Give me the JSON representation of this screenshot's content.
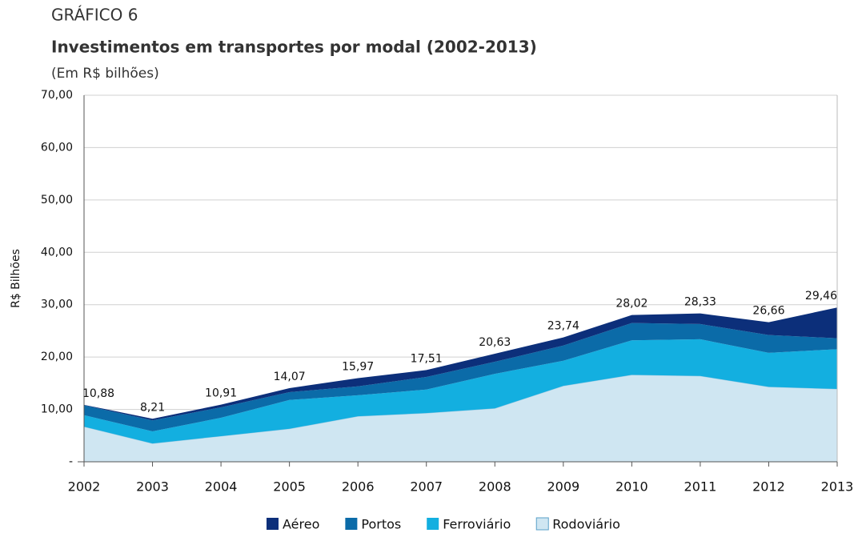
{
  "chart_data": {
    "type": "stacked_area",
    "kicker": "GRÁFICO 6",
    "title": "Investimentos em transportes por modal (2002-2013)",
    "subtitle": "(Em R$ bilhões)",
    "y_label": "R$ Bilhões",
    "categories": [
      "2002",
      "2003",
      "2004",
      "2005",
      "2006",
      "2007",
      "2008",
      "2009",
      "2010",
      "2011",
      "2012",
      "2013"
    ],
    "series": [
      {
        "name": "Rodoviário",
        "color": "#cfe6f2",
        "values": [
          6.7,
          3.5,
          4.9,
          6.3,
          8.7,
          9.3,
          10.2,
          14.5,
          16.6,
          16.4,
          14.3,
          13.9
        ]
      },
      {
        "name": "Ferroviário",
        "color": "#13afe0",
        "values": [
          2.2,
          2.3,
          3.5,
          5.5,
          4.0,
          4.5,
          6.6,
          4.8,
          6.6,
          7.0,
          6.5,
          7.6
        ]
      },
      {
        "name": "Portos",
        "color": "#0b6ba8",
        "values": [
          1.9,
          2.1,
          2.0,
          1.5,
          1.7,
          2.4,
          2.3,
          2.9,
          3.3,
          2.9,
          3.4,
          2.1
        ]
      },
      {
        "name": "Aéreo",
        "color": "#0c2f7a",
        "values": [
          0.08,
          0.31,
          0.51,
          0.77,
          1.57,
          1.31,
          1.53,
          1.54,
          1.52,
          2.03,
          2.46,
          5.86
        ]
      }
    ],
    "totals": [
      10.88,
      8.21,
      10.91,
      14.07,
      15.97,
      17.51,
      20.63,
      23.74,
      28.02,
      28.33,
      26.66,
      29.46
    ],
    "total_labels": [
      "10,88",
      "8,21",
      "10,91",
      "14,07",
      "15,97",
      "17,51",
      "20,63",
      "23,74",
      "28,02",
      "28,33",
      "26,66",
      "29,46"
    ],
    "ylim": [
      0,
      70
    ],
    "yticks": [
      {
        "value": 0,
        "label": "-"
      },
      {
        "value": 10,
        "label": "10,00"
      },
      {
        "value": 20,
        "label": "20,00"
      },
      {
        "value": 30,
        "label": "30,00"
      },
      {
        "value": 40,
        "label": "40,00"
      },
      {
        "value": 50,
        "label": "50,00"
      },
      {
        "value": 60,
        "label": "60,00"
      },
      {
        "value": 70,
        "label": "70,00"
      }
    ],
    "grid": true,
    "legend": "bottom"
  }
}
